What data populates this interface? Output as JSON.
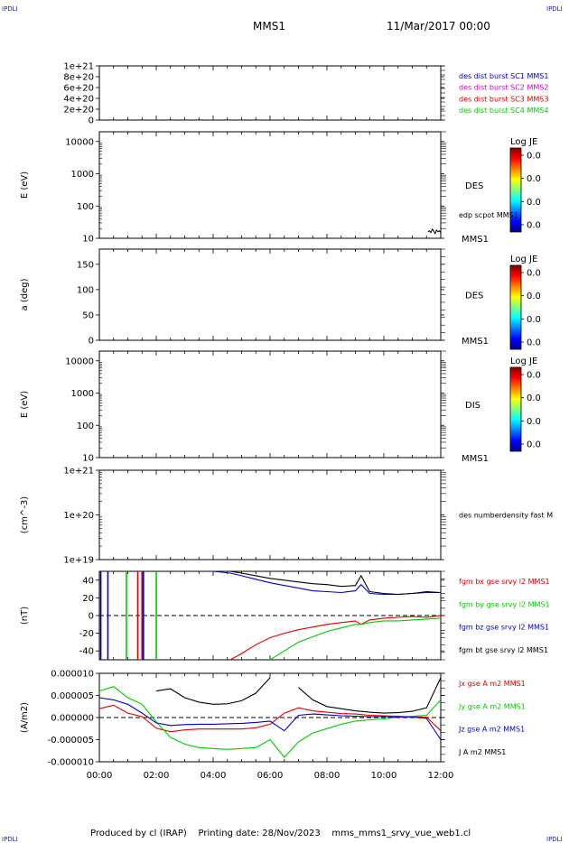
{
  "header": {
    "title": "MMS1",
    "date": "11/Mar/2017 00:00"
  },
  "corner_mark": "IPDLI",
  "footer": {
    "produced_by": "Produced by cl (IRAP)",
    "printing_date": "Printing date: 28/Nov/2023",
    "filename": "mms_mms1_srvy_vue_web1.cl"
  },
  "colors": {
    "black": "#000000",
    "blue": "#0000cc",
    "magenta": "#cc00cc",
    "red": "#dd0000",
    "green": "#00cc00"
  },
  "time_axis": {
    "tick_labels": [
      "00:00",
      "02:00",
      "04:00",
      "06:00",
      "08:00",
      "10:00",
      "12:00"
    ],
    "range_hours": [
      0,
      12
    ]
  },
  "chart_data": [
    {
      "id": "p1",
      "type": "line",
      "ylabel": "",
      "scale": "linear",
      "yticks": [
        "1e+21",
        "8e+20",
        "6e+20",
        "4e+20",
        "2e+20",
        "0"
      ],
      "ylim": [
        0,
        1e+21
      ],
      "series": [
        {
          "name": "des dist burst SC1 MMS1",
          "color": "#0000cc",
          "values": []
        },
        {
          "name": "des dist burst SC2 MMS2",
          "color": "#cc00cc",
          "values": []
        },
        {
          "name": "des dist burst SC3 MMS3",
          "color": "#dd0000",
          "values": []
        },
        {
          "name": "des dist burst SC4 MMS4",
          "color": "#00cc00",
          "values": []
        }
      ],
      "reference_line": 0
    },
    {
      "id": "p2",
      "type": "heatmap",
      "ylabel": "E (eV)",
      "scale": "log",
      "yticks": [
        "10000",
        "1000",
        "100",
        "10"
      ],
      "ylim": [
        10,
        20000
      ],
      "label": "DES",
      "sublabel": "MMS1",
      "overlay": "edp scpot MMS1",
      "colorbar": {
        "title": "Log JE",
        "ticks": [
          "0.0",
          "0.0",
          "0.0",
          "0.0"
        ]
      },
      "overlay_series": {
        "x": [
          11.55,
          11.6,
          11.65,
          11.7,
          11.75,
          11.8,
          11.85,
          11.9,
          11.95,
          12.0
        ],
        "y": [
          16,
          17,
          15,
          19,
          17,
          14,
          18,
          16,
          17,
          15
        ]
      }
    },
    {
      "id": "p3",
      "type": "heatmap",
      "ylabel": "a (deg)",
      "scale": "linear",
      "yticks": [
        "150",
        "100",
        "50",
        "0"
      ],
      "ylim": [
        0,
        180
      ],
      "label": "DES",
      "sublabel": "MMS1",
      "colorbar": {
        "title": "Log JE",
        "ticks": [
          "0.0",
          "0.0",
          "0.0",
          "0.0"
        ]
      }
    },
    {
      "id": "p4",
      "type": "heatmap",
      "ylabel": "E (eV)",
      "scale": "log",
      "yticks": [
        "10000",
        "1000",
        "100",
        "10"
      ],
      "ylim": [
        10,
        20000
      ],
      "label": "DIS",
      "sublabel": "MMS1",
      "colorbar": {
        "title": "Log JE",
        "ticks": [
          "0.0",
          "0.0",
          "0.0",
          "0.0"
        ]
      }
    },
    {
      "id": "p5",
      "type": "line",
      "ylabel": "(cm^-3)",
      "scale": "log",
      "yticks": [
        "1e+21",
        "1e+20",
        "1e+19"
      ],
      "ylim": [
        1e+19,
        1e+21
      ],
      "series": [
        {
          "name": "des numberdensity fast M",
          "color": "#000000",
          "values": []
        }
      ]
    },
    {
      "id": "p6",
      "type": "line",
      "ylabel": "(nT)",
      "scale": "linear",
      "yticks": [
        "40",
        "20",
        "0",
        "-20",
        "-40"
      ],
      "ylim": [
        -50,
        50
      ],
      "reference_line": 0,
      "x": [
        4.0,
        4.6,
        5.0,
        5.5,
        6.0,
        6.5,
        7.0,
        7.5,
        8.0,
        8.5,
        9.0,
        9.2,
        9.5,
        10.0,
        10.5,
        11.0,
        11.5,
        12.0
      ],
      "series": [
        {
          "name": "fgm bx gse srvy l2 MMS1",
          "color": "#dd0000",
          "values": [
            null,
            -50,
            -43,
            -33,
            -25,
            -20,
            -16,
            -13,
            -10,
            -8,
            -6,
            -10,
            -5,
            -3,
            -2,
            -1,
            -2,
            0
          ]
        },
        {
          "name": "fgm by gse srvy l2 MMS1",
          "color": "#00cc00",
          "values": [
            null,
            null,
            null,
            null,
            -50,
            -40,
            -30,
            -24,
            -18,
            -14,
            -10,
            -10,
            -8,
            -6,
            -6,
            -5,
            -4,
            -3
          ]
        },
        {
          "name": "fgm bz gse srvy l2 MMS1",
          "color": "#0000cc",
          "values": [
            50,
            48,
            45,
            41,
            37,
            34,
            31,
            28,
            27,
            26,
            28,
            35,
            25,
            24,
            24,
            25,
            26,
            26
          ]
        },
        {
          "name": "fgm bt gse srvy l2 MMS1",
          "color": "#000000",
          "values": [
            null,
            50,
            48,
            45,
            42,
            40,
            38,
            36,
            35,
            33,
            34,
            45,
            27,
            25,
            24,
            25,
            27,
            26
          ]
        }
      ],
      "spikes": [
        {
          "x": 0.05,
          "color": "#0000cc"
        },
        {
          "x": 0.3,
          "color": "#0000cc"
        },
        {
          "x": 0.95,
          "color": "#00cc00"
        },
        {
          "x": 1.35,
          "color": "#dd0000"
        },
        {
          "x": 1.5,
          "color": "#dd0000"
        },
        {
          "x": 1.55,
          "color": "#0000cc"
        },
        {
          "x": 2.0,
          "color": "#00cc00"
        }
      ]
    },
    {
      "id": "p7",
      "type": "line",
      "ylabel": "(A/m2)",
      "scale": "linear",
      "yticks": [
        "0.000010",
        "0.000005",
        "0.000000",
        "-0.000005",
        "-0.000010"
      ],
      "ylim": [
        -1e-05,
        1e-05
      ],
      "reference_line": 0,
      "x": [
        0.0,
        0.5,
        1.0,
        1.5,
        2.0,
        2.5,
        3.0,
        3.5,
        4.0,
        4.5,
        5.0,
        5.5,
        6.0,
        6.5,
        7.0,
        7.5,
        8.0,
        8.5,
        9.0,
        9.5,
        10.0,
        10.5,
        11.0,
        11.5,
        12.0
      ],
      "series": [
        {
          "name": "Jx gse A m2 MMS1",
          "color": "#dd0000",
          "values": [
            2e-06,
            2.8e-06,
            1e-06,
            2e-07,
            -2.4e-06,
            -3.2e-06,
            -2.8e-06,
            -2.6e-06,
            -2.6e-06,
            -2.6e-06,
            -2.6e-06,
            -2.3e-06,
            -1.5e-06,
            1e-06,
            2.2e-06,
            1.5e-06,
            1.2e-06,
            9e-07,
            8e-07,
            5e-07,
            4e-07,
            3e-07,
            2e-07,
            1e-07,
            -3e-06
          ]
        },
        {
          "name": "Jy gse A m2 MMS1",
          "color": "#00cc00",
          "values": [
            6e-06,
            7e-06,
            4.5e-06,
            3e-06,
            -1e-06,
            -4.5e-06,
            -6e-06,
            -6.8e-06,
            -7e-06,
            -7.2e-06,
            -7e-06,
            -6.8e-06,
            -5e-06,
            -9e-06,
            -5.5e-06,
            -3.5e-06,
            -2.5e-06,
            -1.5e-06,
            -8e-07,
            -5e-07,
            -3e-07,
            1e-07,
            3e-07,
            5e-07,
            4e-06
          ]
        },
        {
          "name": "Jz gse A m2 MMS1",
          "color": "#0000cc",
          "values": [
            4.5e-06,
            4e-06,
            3e-06,
            1e-06,
            -1.2e-06,
            -1.8e-06,
            -1.6e-06,
            -1.5e-06,
            -1.5e-06,
            -1.4e-06,
            -1.3e-06,
            -1.1e-06,
            -8e-07,
            -3e-06,
            5e-07,
            8e-07,
            6e-07,
            4e-07,
            3e-07,
            2e-07,
            2e-07,
            1e-07,
            1e-07,
            -2e-07,
            -5e-06
          ]
        },
        {
          "name": "J A m2 MMS1",
          "color": "#000000",
          "values": [
            null,
            null,
            null,
            null,
            6e-06,
            6.5e-06,
            4.5e-06,
            3.5e-06,
            3e-06,
            3.1e-06,
            3.8e-06,
            5.5e-06,
            9e-06,
            null,
            6.8e-06,
            4e-06,
            2.5e-06,
            2e-06,
            1.5e-06,
            1.2e-06,
            1e-06,
            1.1e-06,
            1.4e-06,
            2.2e-06,
            9e-06
          ]
        }
      ]
    }
  ]
}
